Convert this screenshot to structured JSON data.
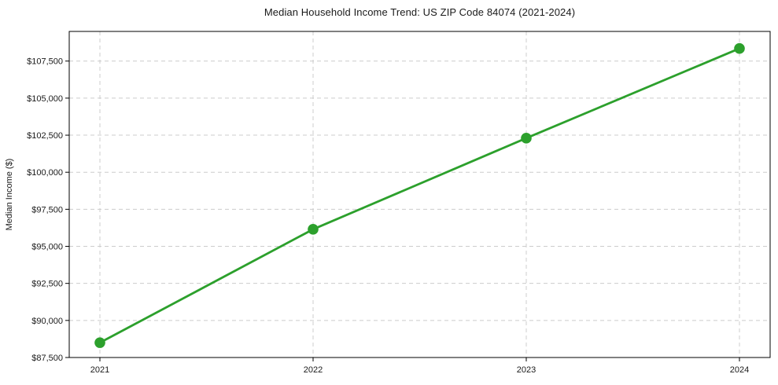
{
  "chart_data": {
    "type": "line",
    "title": "Median Household Income Trend: US ZIP Code 84074 (2021-2024)",
    "xlabel": "",
    "ylabel": "Median Income ($)",
    "x": [
      "2021",
      "2022",
      "2023",
      "2024"
    ],
    "series": [
      {
        "name": "Median Household Income",
        "values": [
          88500,
          96150,
          102300,
          108350
        ]
      }
    ],
    "ylim": [
      87500,
      109500
    ],
    "yticks": [
      87500,
      90000,
      92500,
      95000,
      97500,
      100000,
      102500,
      105000,
      107500
    ],
    "ytick_labels": [
      "$87,500",
      "$90,000",
      "$92,500",
      "$95,000",
      "$97,500",
      "$100,000",
      "$102,500",
      "$105,000",
      "$107,500"
    ],
    "grid": true,
    "grid_style": "dashed",
    "legend_position": "none",
    "line_color": "#2ca02c",
    "marker_color": "#2ca02c",
    "grid_color": "#cccccc",
    "spine_color": "#000000",
    "text_color": "#1a1a1a",
    "background": "#ffffff"
  }
}
